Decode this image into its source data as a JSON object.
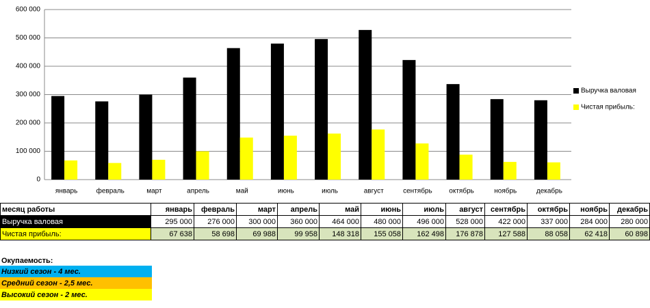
{
  "chart_data": {
    "type": "bar",
    "categories": [
      "январь",
      "февраль",
      "март",
      "апрель",
      "май",
      "июнь",
      "июль",
      "август",
      "сентябрь",
      "октябрь",
      "ноябрь",
      "декабрь"
    ],
    "series": [
      {
        "name": "Выручка валовая",
        "color": "#000000",
        "values": [
          295000,
          276000,
          300000,
          360000,
          464000,
          480000,
          496000,
          528000,
          422000,
          337000,
          284000,
          280000
        ]
      },
      {
        "name": "Чистая прибыль:",
        "color": "#ffff00",
        "values": [
          67638,
          58698,
          69988,
          99958,
          148318,
          155058,
          162498,
          176878,
          127588,
          88058,
          62418,
          60898
        ]
      }
    ],
    "ylim": [
      0,
      600000
    ],
    "yticks": [
      0,
      {
        "value": 100000,
        "label": "100 000"
      },
      {
        "value": 200000,
        "label": "200 000"
      },
      {
        "value": 300000,
        "label": "300 000"
      },
      {
        "value": 400000,
        "label": "400 000"
      },
      {
        "value": 500000,
        "label": "500 000"
      },
      {
        "value": 600000,
        "label": "600 000"
      }
    ],
    "grid": true,
    "legend": "right"
  },
  "table": {
    "header": [
      "месяц работы",
      "январь",
      "февраль",
      "март",
      "апрель",
      "май",
      "июнь",
      "июль",
      "август",
      "сентябрь",
      "октябрь",
      "ноябрь",
      "декабрь"
    ],
    "rows": [
      [
        "Выручка валовая",
        "295 000",
        "276 000",
        "300 000",
        "360 000",
        "464 000",
        "480 000",
        "496 000",
        "528 000",
        "422 000",
        "337 000",
        "284 000",
        "280 000"
      ],
      [
        "Чистая прибыль:",
        "67 638",
        "58 698",
        "69 988",
        "99 958",
        "148 318",
        "155 058",
        "162 498",
        "176 878",
        "127 588",
        "88 058",
        "62 418",
        "60 898"
      ]
    ]
  },
  "payback": {
    "title": "Окупаемость:",
    "items": [
      "Низкий сезон - 4 мес.",
      "Средний сезон - 2,5 мес.",
      "Высокий сезон - 2 мес."
    ]
  }
}
